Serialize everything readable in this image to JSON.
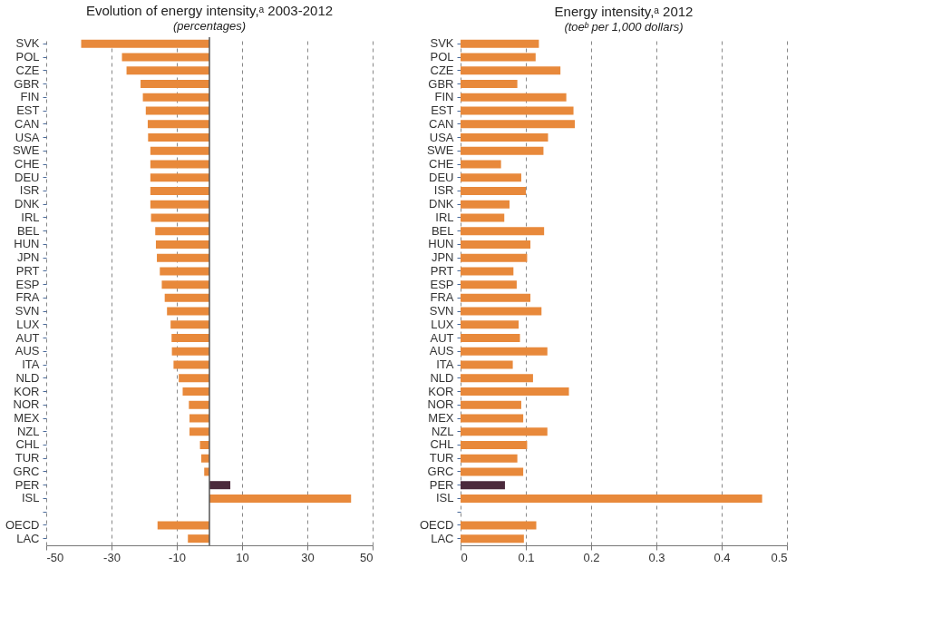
{
  "chart_data": [
    {
      "type": "bar",
      "orientation": "horizontal",
      "title": "Evolution of energy intensity,ᵃ 2003-2012",
      "subtitle": "(percentages)",
      "categories": [
        "SVK",
        "POL",
        "CZE",
        "GBR",
        "FIN",
        "EST",
        "CAN",
        "USA",
        "SWE",
        "CHE",
        "DEU",
        "ISR",
        "DNK",
        "IRL",
        "BEL",
        "HUN",
        "JPN",
        "PRT",
        "ESP",
        "FRA",
        "SVN",
        "LUX",
        "AUT",
        "AUS",
        "ITA",
        "NLD",
        "KOR",
        "NOR",
        "MEX",
        "NZL",
        "CHL",
        "TUR",
        "GRC",
        "PER",
        "ISL",
        null,
        "OECD",
        "LAC"
      ],
      "values": [
        -39.3,
        -26.8,
        -25.4,
        -21.1,
        -20.4,
        -19.5,
        -18.9,
        -18.8,
        -18.1,
        -18.1,
        -18.1,
        -18.1,
        -18.1,
        -17.9,
        -16.6,
        -16.4,
        -16.1,
        -15.2,
        -14.6,
        -13.7,
        -13.0,
        -11.9,
        -11.6,
        -11.5,
        -11.0,
        -9.4,
        -8.2,
        -6.3,
        -6.1,
        -6.1,
        -2.9,
        -2.5,
        -1.6,
        6.4,
        43.4,
        null,
        -15.9,
        -6.6
      ],
      "colors": [
        "#e8893b",
        "#e8893b",
        "#e8893b",
        "#e8893b",
        "#e8893b",
        "#e8893b",
        "#e8893b",
        "#e8893b",
        "#e8893b",
        "#e8893b",
        "#e8893b",
        "#e8893b",
        "#e8893b",
        "#e8893b",
        "#e8893b",
        "#e8893b",
        "#e8893b",
        "#e8893b",
        "#e8893b",
        "#e8893b",
        "#e8893b",
        "#e8893b",
        "#e8893b",
        "#e8893b",
        "#e8893b",
        "#e8893b",
        "#e8893b",
        "#e8893b",
        "#e8893b",
        "#e8893b",
        "#e8893b",
        "#e8893b",
        "#e8893b",
        "#4b2a3c",
        "#e8893b",
        "#e8893b",
        "#e8893b",
        "#e8893b"
      ],
      "xlim": [
        -50,
        50
      ],
      "xticks": [
        -50,
        -30,
        -10,
        10,
        30,
        50
      ],
      "grid": "x",
      "ref_lines": [
        {
          "axis": "x",
          "value": 0,
          "color": "#555555",
          "line_style": "solid"
        }
      ]
    },
    {
      "type": "bar",
      "orientation": "horizontal",
      "title": "Energy intensity,ᵃ 2012",
      "subtitle": "(toeᵇ per 1,000 dollars)",
      "categories": [
        "SVK",
        "POL",
        "CZE",
        "GBR",
        "FIN",
        "EST",
        "CAN",
        "USA",
        "SWE",
        "CHE",
        "DEU",
        "ISR",
        "DNK",
        "IRL",
        "BEL",
        "HUN",
        "JPN",
        "PRT",
        "ESP",
        "FRA",
        "SVN",
        "LUX",
        "AUT",
        "AUS",
        "ITA",
        "NLD",
        "KOR",
        "NOR",
        "MEX",
        "NZL",
        "CHL",
        "TUR",
        "GRC",
        "PER",
        "ISL",
        null,
        "OECD",
        "LAC"
      ],
      "values": [
        0.12,
        0.115,
        0.153,
        0.087,
        0.162,
        0.173,
        0.175,
        0.134,
        0.127,
        0.062,
        0.093,
        0.1,
        0.075,
        0.067,
        0.128,
        0.107,
        0.102,
        0.081,
        0.086,
        0.107,
        0.124,
        0.089,
        0.091,
        0.133,
        0.08,
        0.111,
        0.166,
        0.093,
        0.096,
        0.133,
        0.102,
        0.087,
        0.096,
        0.068,
        0.462,
        null,
        0.116,
        0.097
      ],
      "colors": [
        "#e8893b",
        "#e8893b",
        "#e8893b",
        "#e8893b",
        "#e8893b",
        "#e8893b",
        "#e8893b",
        "#e8893b",
        "#e8893b",
        "#e8893b",
        "#e8893b",
        "#e8893b",
        "#e8893b",
        "#e8893b",
        "#e8893b",
        "#e8893b",
        "#e8893b",
        "#e8893b",
        "#e8893b",
        "#e8893b",
        "#e8893b",
        "#e8893b",
        "#e8893b",
        "#e8893b",
        "#e8893b",
        "#e8893b",
        "#e8893b",
        "#e8893b",
        "#e8893b",
        "#e8893b",
        "#e8893b",
        "#e8893b",
        "#e8893b",
        "#4b2a3c",
        "#e8893b",
        "#e8893b",
        "#e8893b",
        "#e8893b"
      ],
      "xlim": [
        0,
        0.5
      ],
      "xticks": [
        0,
        0.1,
        0.2,
        0.3,
        0.4,
        0.5
      ],
      "grid": "x"
    }
  ]
}
